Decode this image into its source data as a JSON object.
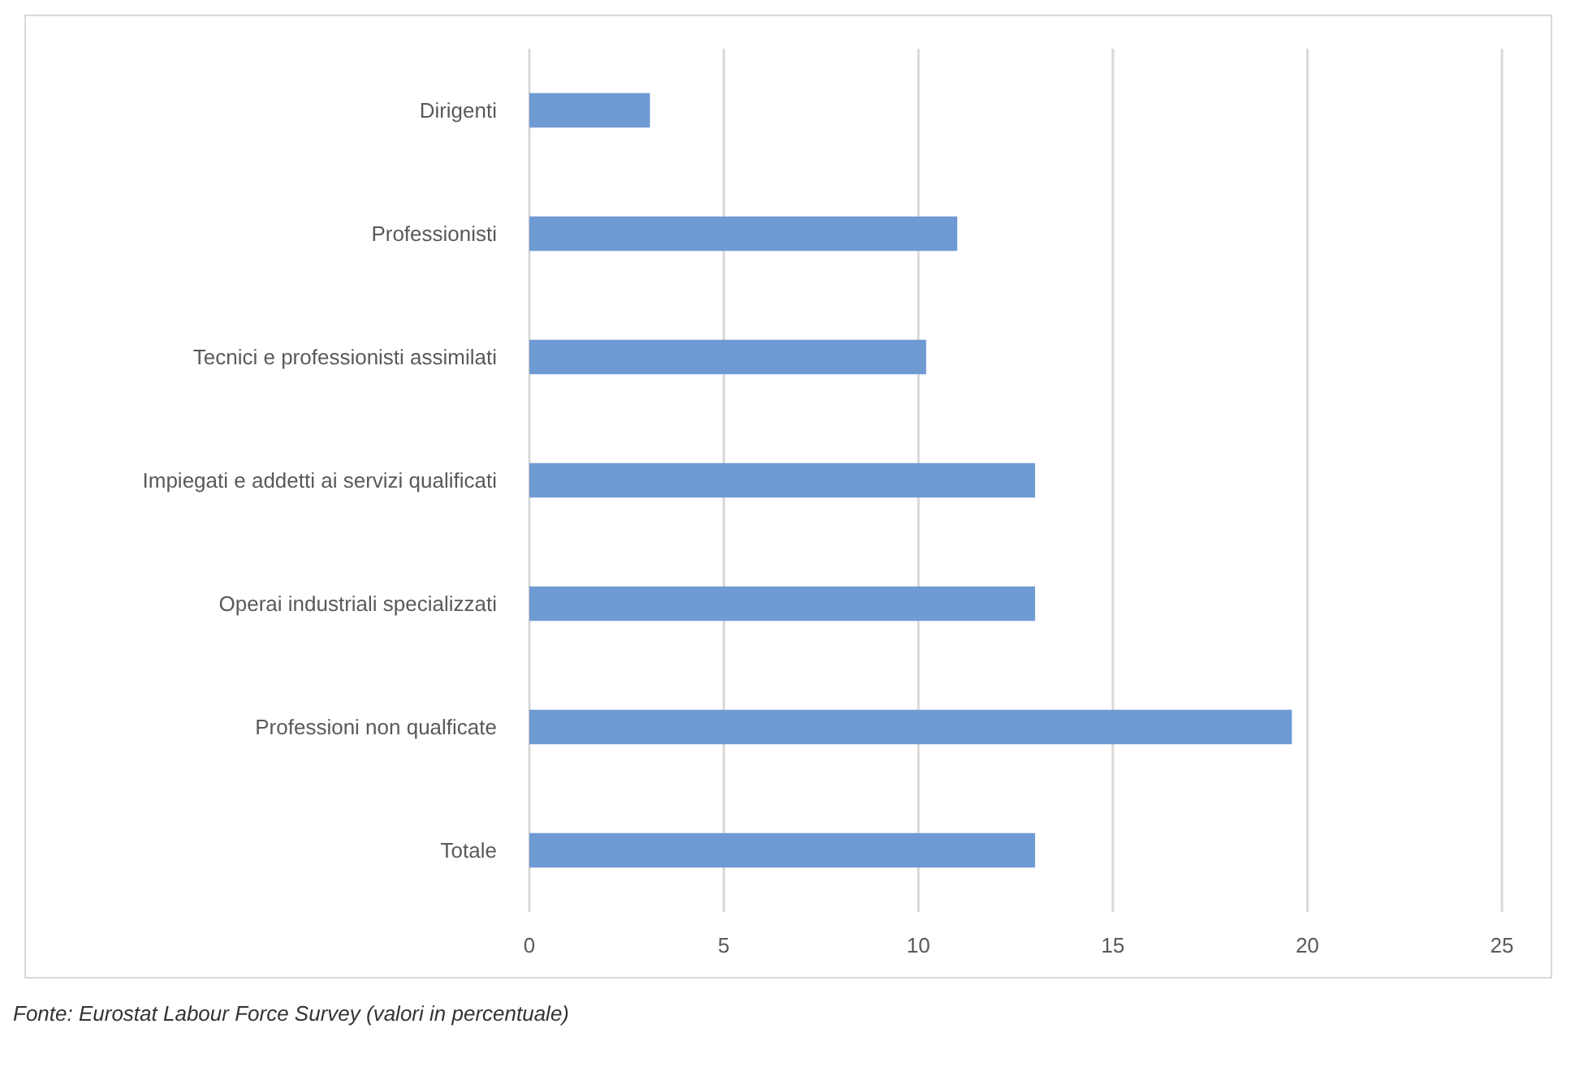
{
  "chart_data": {
    "type": "bar",
    "orientation": "horizontal",
    "categories": [
      "Dirigenti",
      "Professionisti",
      "Tecnici e professionisti assimilati",
      "Impiegati e addetti ai servizi qualificati",
      "Operai industriali specializzati",
      "Professioni non qualficate",
      "Totale"
    ],
    "values": [
      3.1,
      11.0,
      10.2,
      13.0,
      13.0,
      19.6,
      13.0
    ],
    "color": "#6f9bd4",
    "xlim": [
      0,
      25
    ],
    "xticks": [
      0,
      5,
      10,
      15,
      20,
      25
    ],
    "grid": "x",
    "annotations": [
      "Fonte: Eurostat Labour Force Survey (valori in percentuale)"
    ]
  }
}
